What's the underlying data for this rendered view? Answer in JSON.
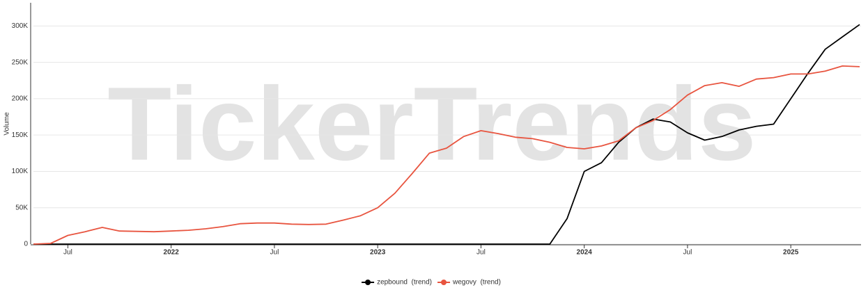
{
  "chart_data": {
    "type": "line",
    "watermark": "TickerTrends",
    "y_label": "Volume",
    "x": [
      "2021-05",
      "2021-06",
      "2021-07",
      "2021-08",
      "2021-09",
      "2021-10",
      "2021-11",
      "2021-12",
      "2022-01",
      "2022-02",
      "2022-03",
      "2022-04",
      "2022-05",
      "2022-06",
      "2022-07",
      "2022-08",
      "2022-09",
      "2022-10",
      "2022-11",
      "2022-12",
      "2023-01",
      "2023-02",
      "2023-03",
      "2023-04",
      "2023-05",
      "2023-06",
      "2023-07",
      "2023-08",
      "2023-09",
      "2023-10",
      "2023-11",
      "2023-12",
      "2024-01",
      "2024-02",
      "2024-03",
      "2024-04",
      "2024-05",
      "2024-06",
      "2024-07",
      "2024-08",
      "2024-09",
      "2024-10",
      "2024-11",
      "2024-12",
      "2025-01",
      "2025-02",
      "2025-03",
      "2025-04",
      "2025-05"
    ],
    "xlim": [
      "2021-05",
      "2025-05"
    ],
    "xticks": [
      {
        "value": "2021-07",
        "label": "Jul"
      },
      {
        "value": "2022-01",
        "label": "2022"
      },
      {
        "value": "2022-07",
        "label": "Jul"
      },
      {
        "value": "2023-01",
        "label": "2023"
      },
      {
        "value": "2023-07",
        "label": "Jul"
      },
      {
        "value": "2024-01",
        "label": "2024"
      },
      {
        "value": "2024-07",
        "label": "Jul"
      },
      {
        "value": "2025-01",
        "label": "2025"
      }
    ],
    "ylim": [
      0,
      330000
    ],
    "yticks": [
      0,
      {
        "value": 50000,
        "label": "50K"
      },
      {
        "value": 100000,
        "label": "100K"
      },
      {
        "value": 150000,
        "label": "150K"
      },
      {
        "value": 200000,
        "label": "200K"
      },
      {
        "value": 250000,
        "label": "250K"
      },
      {
        "value": 300000,
        "label": "300K"
      }
    ],
    "grid": true,
    "legend": "bottom",
    "series": [
      {
        "name": "zepbound  (trend)",
        "color": "#000000",
        "values": [
          0,
          0,
          0,
          0,
          0,
          0,
          0,
          0,
          0,
          0,
          0,
          0,
          0,
          0,
          0,
          0,
          0,
          0,
          0,
          0,
          0,
          0,
          0,
          0,
          0,
          0,
          0,
          0,
          0,
          0,
          0,
          35000,
          100000,
          112000,
          140000,
          160000,
          172000,
          168000,
          153000,
          143000,
          148000,
          157000,
          162000,
          165000,
          200000,
          235000,
          268000,
          285000,
          302000
        ]
      },
      {
        "name": "wegovy  (trend)",
        "color": "#e8543f",
        "values": [
          0,
          1000,
          12000,
          17000,
          23000,
          18000,
          17500,
          17000,
          18000,
          19000,
          21000,
          24000,
          28000,
          29000,
          29000,
          27500,
          27000,
          27500,
          33000,
          39000,
          50000,
          70000,
          97000,
          125000,
          132000,
          148000,
          156000,
          152000,
          147000,
          145000,
          140000,
          133000,
          131000,
          135000,
          142000,
          160000,
          170000,
          185000,
          205000,
          218000,
          222000,
          217000,
          227000,
          229000,
          234000,
          234000,
          238000,
          245000,
          244000
        ]
      }
    ]
  }
}
